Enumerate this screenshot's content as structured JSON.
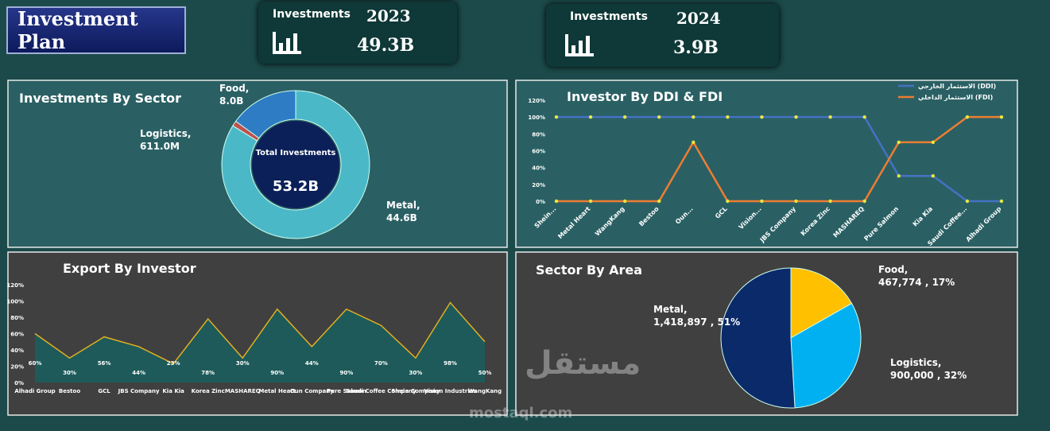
{
  "header": {
    "title": "Investment Plan"
  },
  "kpis": [
    {
      "label": "Investments",
      "year": "2023",
      "value": "49.3B"
    },
    {
      "label": "Investments",
      "year": "2024",
      "value": "3.9B"
    }
  ],
  "watermark": {
    "arabic": "مستقل",
    "latin": "mostaql.com"
  },
  "chart_data": [
    {
      "type": "donut",
      "title": "Investments By Sector",
      "center_label": "Total Investments",
      "total": "53.2B",
      "categories": [
        "Metal,",
        "Logistics,",
        "Food,"
      ],
      "values": [
        44.6,
        0.611,
        8.0
      ],
      "value_labels": [
        "44.6B",
        "611.0M",
        "8.0B"
      ],
      "colors": [
        "#4bb8c8",
        "#c0504d",
        "#2e7cc4"
      ]
    },
    {
      "type": "line",
      "title": "Investor By DDI & FDI",
      "categories": [
        "Shein...",
        "Metal Heart",
        "WangKang",
        "Bestoo",
        "Oun...",
        "GCL",
        "Vision...",
        "JBS Company",
        "Korea Zinc",
        "MASHAREQ",
        "Pure Salmon",
        "Kia Kia",
        "Saudi Coffee...",
        "Alhadi Group"
      ],
      "series": [
        {
          "name": "الاستثمار الخارجي (DDI)",
          "color": "#4472c4",
          "values": [
            100,
            100,
            100,
            100,
            100,
            100,
            100,
            100,
            100,
            100,
            30,
            30,
            0,
            0
          ]
        },
        {
          "name": "الاستثمار الداخلي (FDI)",
          "color": "#ed7d31",
          "values": [
            0,
            0,
            0,
            0,
            70,
            0,
            0,
            0,
            0,
            0,
            70,
            70,
            100,
            100
          ]
        }
      ],
      "ylim": [
        0,
        120
      ],
      "yticks": [
        {
          "value": 0,
          "label": "0%"
        },
        {
          "value": 20,
          "label": "20%"
        },
        {
          "value": 40,
          "label": "40%"
        },
        {
          "value": 60,
          "label": "60%"
        },
        {
          "value": 80,
          "label": "80%"
        },
        {
          "value": 100,
          "label": "100%"
        },
        {
          "value": 120,
          "label": "120%"
        }
      ],
      "legend": "top-right"
    },
    {
      "type": "area",
      "title": "Export By Investor",
      "categories": [
        "Alhadi Group",
        "Bestoo",
        "GCL",
        "JBS Company",
        "Kia Kia",
        "Korea Zinc",
        "MASHAREQ",
        "Metal Heart",
        "Oun Company",
        "Pure Salmon",
        "Saudi Coffee Company",
        "Shein Company",
        "Vision Industries",
        "WangKang"
      ],
      "values": [
        60,
        30,
        56,
        44,
        23,
        78,
        30,
        90,
        44,
        90,
        70,
        30,
        98,
        50
      ],
      "value_labels": [
        "60%",
        "30%",
        "56%",
        "44%",
        "23%",
        "78%",
        "30%",
        "90%",
        "44%",
        "90%",
        "70%",
        "30%",
        "98%",
        "50%"
      ],
      "color": "#e0b020",
      "fill": "#1e5a5a",
      "ylim": [
        0,
        120
      ],
      "yticks": [
        {
          "value": 0,
          "label": "0%"
        },
        {
          "value": 20,
          "label": "20%"
        },
        {
          "value": 40,
          "label": "40%"
        },
        {
          "value": 60,
          "label": "60%"
        },
        {
          "value": 80,
          "label": "80%"
        },
        {
          "value": 100,
          "label": "100%"
        },
        {
          "value": 120,
          "label": "120%"
        }
      ]
    },
    {
      "type": "pie",
      "title": "Sector By  Area",
      "categories": [
        "Food,",
        "Logistics,",
        "Metal,"
      ],
      "values": [
        467774,
        900000,
        1418897
      ],
      "value_labels": [
        "467,774 , 17%",
        "900,000 , 32%",
        "1,418,897 , 51%"
      ],
      "colors": [
        "#ffc000",
        "#00b0f0",
        "#0b2a6a"
      ]
    }
  ]
}
